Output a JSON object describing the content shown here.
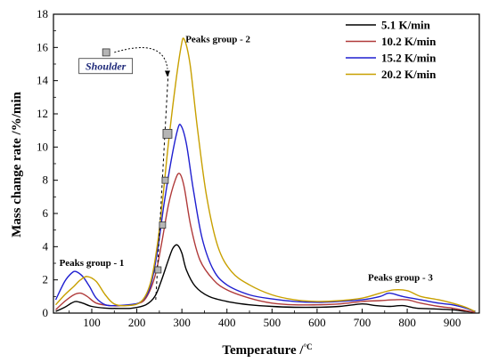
{
  "chart_data": {
    "type": "line",
    "xlabel": "Temperature /",
    "xlabel_unit": "°C",
    "ylabel": "Mass change rate /%/min",
    "xlim": [
      15,
      960
    ],
    "ylim": [
      0,
      18
    ],
    "x_ticks": [
      100,
      200,
      300,
      400,
      500,
      600,
      700,
      800,
      900
    ],
    "y_ticks": [
      0,
      2,
      4,
      6,
      8,
      10,
      12,
      14,
      16,
      18
    ],
    "legend_position": "top-right",
    "series": [
      {
        "name": "5.1 K/min",
        "color": "#000000",
        "points": [
          [
            20,
            0.1
          ],
          [
            40,
            0.35
          ],
          [
            55,
            0.6
          ],
          [
            65,
            0.7
          ],
          [
            80,
            0.6
          ],
          [
            100,
            0.4
          ],
          [
            130,
            0.3
          ],
          [
            160,
            0.28
          ],
          [
            190,
            0.3
          ],
          [
            220,
            0.5
          ],
          [
            240,
            1.0
          ],
          [
            255,
            2.0
          ],
          [
            270,
            3.2
          ],
          [
            280,
            3.9
          ],
          [
            290,
            4.1
          ],
          [
            300,
            3.6
          ],
          [
            310,
            2.6
          ],
          [
            330,
            1.6
          ],
          [
            360,
            1.0
          ],
          [
            400,
            0.7
          ],
          [
            450,
            0.5
          ],
          [
            500,
            0.4
          ],
          [
            550,
            0.35
          ],
          [
            600,
            0.35
          ],
          [
            650,
            0.4
          ],
          [
            700,
            0.55
          ],
          [
            730,
            0.45
          ],
          [
            760,
            0.4
          ],
          [
            790,
            0.45
          ],
          [
            820,
            0.3
          ],
          [
            860,
            0.25
          ],
          [
            900,
            0.2
          ],
          [
            930,
            0.1
          ],
          [
            950,
            0.05
          ]
        ]
      },
      {
        "name": "10.2 K/min",
        "color": "#b03a3a",
        "points": [
          [
            20,
            0.2
          ],
          [
            40,
            0.7
          ],
          [
            60,
            1.1
          ],
          [
            75,
            1.2
          ],
          [
            90,
            1.0
          ],
          [
            110,
            0.6
          ],
          [
            140,
            0.45
          ],
          [
            170,
            0.45
          ],
          [
            200,
            0.55
          ],
          [
            220,
            0.9
          ],
          [
            240,
            2.2
          ],
          [
            255,
            4.2
          ],
          [
            270,
            6.5
          ],
          [
            285,
            8.0
          ],
          [
            295,
            8.4
          ],
          [
            305,
            7.6
          ],
          [
            320,
            5.2
          ],
          [
            340,
            3.2
          ],
          [
            370,
            2.0
          ],
          [
            400,
            1.4
          ],
          [
            450,
            0.9
          ],
          [
            500,
            0.6
          ],
          [
            550,
            0.5
          ],
          [
            600,
            0.5
          ],
          [
            650,
            0.55
          ],
          [
            700,
            0.7
          ],
          [
            740,
            0.75
          ],
          [
            770,
            0.8
          ],
          [
            800,
            0.8
          ],
          [
            830,
            0.6
          ],
          [
            870,
            0.4
          ],
          [
            900,
            0.3
          ],
          [
            930,
            0.15
          ],
          [
            950,
            0.05
          ]
        ]
      },
      {
        "name": "15.2 K/min",
        "color": "#1f1fd0",
        "points": [
          [
            20,
            0.8
          ],
          [
            40,
            1.9
          ],
          [
            55,
            2.4
          ],
          [
            65,
            2.5
          ],
          [
            80,
            2.2
          ],
          [
            95,
            1.6
          ],
          [
            110,
            0.9
          ],
          [
            130,
            0.5
          ],
          [
            150,
            0.45
          ],
          [
            180,
            0.5
          ],
          [
            210,
            0.7
          ],
          [
            230,
            1.6
          ],
          [
            245,
            3.6
          ],
          [
            260,
            6.5
          ],
          [
            275,
            9.0
          ],
          [
            290,
            11.0
          ],
          [
            298,
            11.3
          ],
          [
            310,
            10.2
          ],
          [
            325,
            7.5
          ],
          [
            345,
            4.5
          ],
          [
            370,
            2.6
          ],
          [
            400,
            1.7
          ],
          [
            450,
            1.1
          ],
          [
            500,
            0.85
          ],
          [
            550,
            0.7
          ],
          [
            600,
            0.65
          ],
          [
            650,
            0.7
          ],
          [
            700,
            0.8
          ],
          [
            740,
            1.0
          ],
          [
            760,
            1.2
          ],
          [
            790,
            1.0
          ],
          [
            830,
            0.8
          ],
          [
            870,
            0.6
          ],
          [
            900,
            0.5
          ],
          [
            930,
            0.3
          ],
          [
            950,
            0.1
          ]
        ]
      },
      {
        "name": "20.2 K/min",
        "color": "#c8a000",
        "points": [
          [
            20,
            0.5
          ],
          [
            40,
            1.1
          ],
          [
            60,
            1.6
          ],
          [
            75,
            2.0
          ],
          [
            90,
            2.2
          ],
          [
            110,
            1.9
          ],
          [
            130,
            1.1
          ],
          [
            150,
            0.55
          ],
          [
            180,
            0.45
          ],
          [
            210,
            0.7
          ],
          [
            230,
            1.8
          ],
          [
            245,
            4.0
          ],
          [
            258,
            7.0
          ],
          [
            270,
            10.2
          ],
          [
            285,
            13.6
          ],
          [
            298,
            16.0
          ],
          [
            305,
            16.5
          ],
          [
            318,
            15.0
          ],
          [
            335,
            11.0
          ],
          [
            355,
            7.0
          ],
          [
            380,
            4.0
          ],
          [
            410,
            2.5
          ],
          [
            450,
            1.7
          ],
          [
            500,
            1.1
          ],
          [
            550,
            0.8
          ],
          [
            600,
            0.7
          ],
          [
            650,
            0.75
          ],
          [
            700,
            0.9
          ],
          [
            740,
            1.2
          ],
          [
            770,
            1.4
          ],
          [
            800,
            1.35
          ],
          [
            830,
            1.0
          ],
          [
            870,
            0.8
          ],
          [
            900,
            0.6
          ],
          [
            930,
            0.35
          ],
          [
            950,
            0.1
          ]
        ]
      }
    ],
    "annotations": [
      {
        "text": "Peaks group - 2",
        "x": 380,
        "y": 16.3
      },
      {
        "text": "Peaks group - 1",
        "x": 100,
        "y": 2.85
      },
      {
        "text": "Peaks group - 3",
        "x": 785,
        "y": 1.95
      },
      {
        "text": "Shoulder",
        "x": 127,
        "y": 14.8
      }
    ],
    "shoulder_markers": [
      [
        247,
        2.6
      ],
      [
        257,
        5.3
      ],
      [
        263,
        8.0
      ],
      [
        268,
        10.8
      ]
    ]
  }
}
